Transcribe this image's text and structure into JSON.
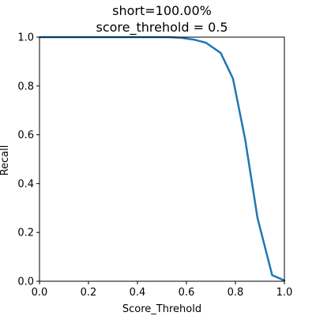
{
  "chart_data": {
    "type": "line",
    "title_lines": [
      "short=100.00%",
      "score_threhold = 0.5"
    ],
    "xlabel": "Score_Threhold",
    "ylabel": "Recall",
    "xlim": [
      0,
      1
    ],
    "ylim": [
      0,
      1
    ],
    "xticks": [
      "0.0",
      "0.2",
      "0.4",
      "0.6",
      "0.8",
      "1.0"
    ],
    "yticks": [
      "0.0",
      "0.2",
      "0.4",
      "0.6",
      "0.8",
      "1.0"
    ],
    "grid": false,
    "line_color": "#1f77b4",
    "series": [
      {
        "x": [
          0.0,
          0.05,
          0.1,
          0.15,
          0.2,
          0.25,
          0.3,
          0.35,
          0.4,
          0.45,
          0.5,
          0.53,
          0.58,
          0.63,
          0.68,
          0.74,
          0.79,
          0.84,
          0.89,
          0.95,
          1.0
        ],
        "y": [
          1.0,
          1.0,
          1.0,
          1.0,
          1.0,
          1.0,
          1.0,
          1.0,
          1.0,
          1.0,
          1.0,
          1.0,
          0.997,
          0.99,
          0.977,
          0.935,
          0.83,
          0.58,
          0.26,
          0.025,
          0.003
        ]
      }
    ]
  }
}
